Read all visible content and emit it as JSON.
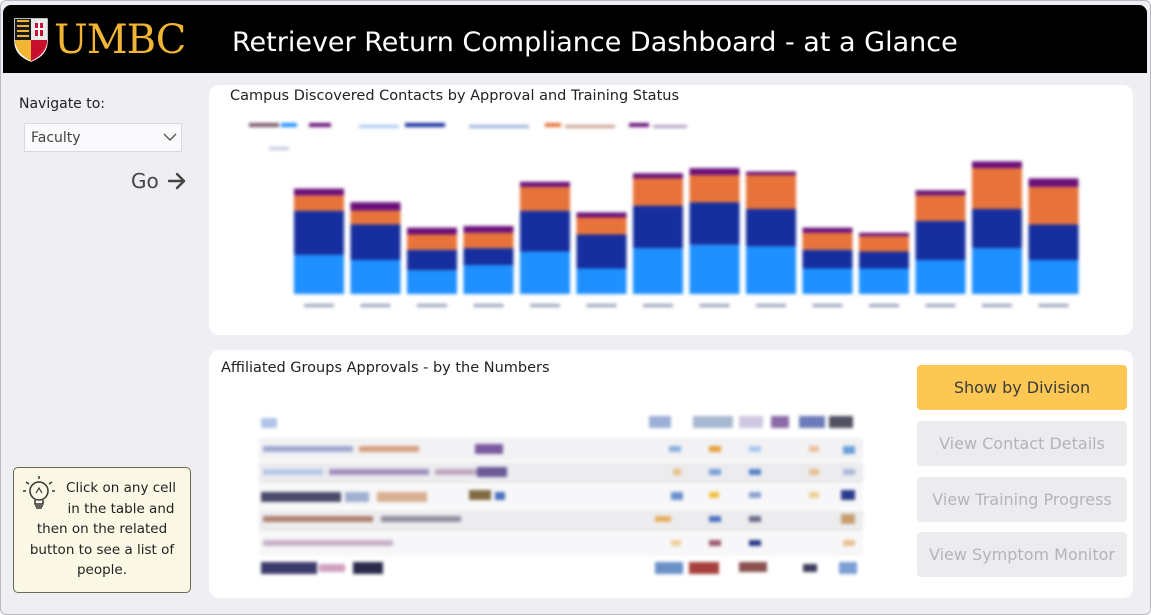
{
  "header": {
    "logo_text": "UMBC",
    "title": "Retriever Return Compliance Dashboard - at a Glance"
  },
  "sidebar": {
    "nav_label": "Navigate to:",
    "select_value": "Faculty",
    "go_label": "Go",
    "tip_text": "Click on any cell in the table and then on the related button to see a list of people."
  },
  "chart": {
    "title": "Campus Discovered Contacts by Approval and Training Status"
  },
  "table": {
    "title": "Affiliated Groups Approvals - by the Numbers"
  },
  "buttons": {
    "show_by_division": "Show by Division",
    "view_contact_details": "View Contact Details",
    "view_training_progress": "View Training Progress",
    "view_symptom_monitor": "View Symptom Monitor"
  },
  "colors": {
    "brand_gold": "#F2B433",
    "primary_button": "#FDC754",
    "series_purple": "#6A0F7A",
    "series_orange": "#E8733A",
    "series_navy": "#162E9E",
    "series_blue": "#1E90FF"
  },
  "chart_data": {
    "type": "bar",
    "stacked": true,
    "series": [
      {
        "values": [
          46,
          40,
          28,
          34,
          50,
          30,
          54,
          58,
          56,
          30,
          30,
          40,
          54,
          40
        ]
      },
      {
        "values": [
          52,
          42,
          24,
          20,
          48,
          40,
          50,
          50,
          44,
          22,
          20,
          46,
          46,
          42
        ]
      },
      {
        "values": [
          18,
          16,
          18,
          18,
          28,
          20,
          32,
          32,
          40,
          20,
          18,
          30,
          48,
          44
        ]
      },
      {
        "values": [
          8,
          10,
          8,
          8,
          6,
          6,
          6,
          8,
          4,
          6,
          4,
          6,
          8,
          10
        ]
      }
    ],
    "grid": false,
    "legend": "top-left"
  }
}
